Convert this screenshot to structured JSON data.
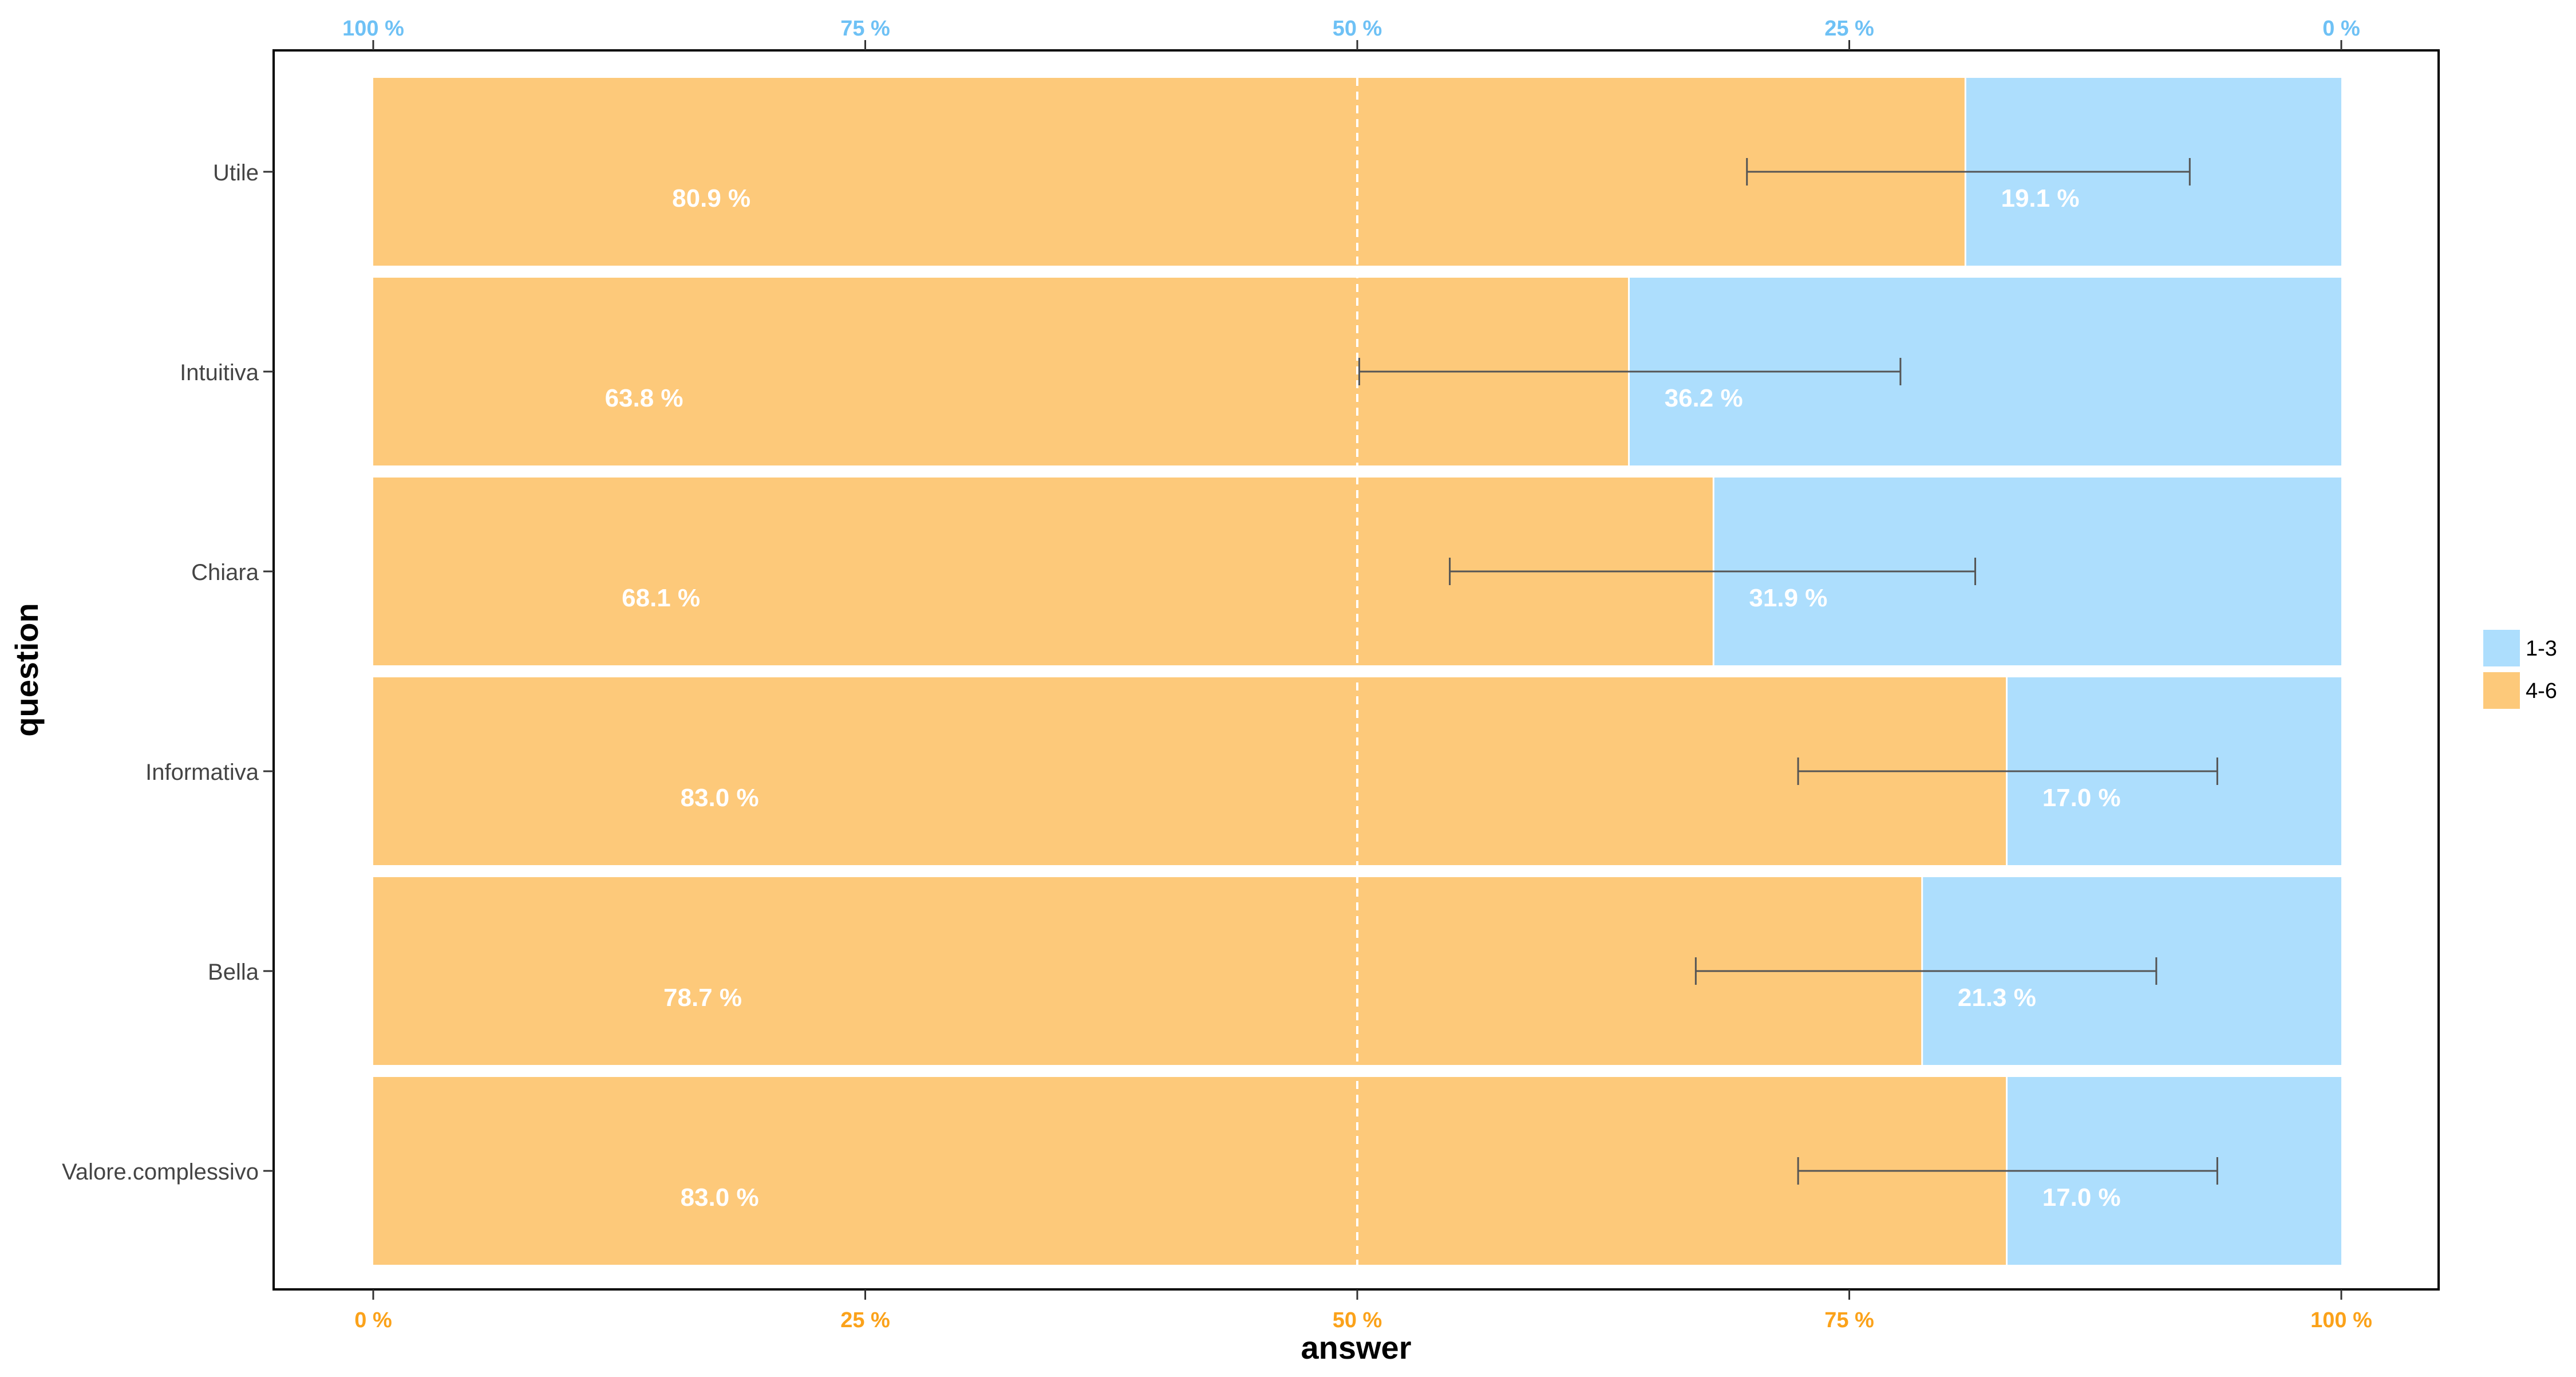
{
  "chart_data": {
    "type": "bar",
    "orientation": "horizontal",
    "stacked": true,
    "xlabel": "answer",
    "ylabel": "question",
    "categories": [
      "Utile",
      "Intuitiva",
      "Chiara",
      "Informativa",
      "Bella",
      "Valore.complessivo"
    ],
    "series": [
      {
        "name": "4-6",
        "color": "#FDC97A",
        "values": [
          80.9,
          63.8,
          68.1,
          83.0,
          78.7,
          83.0
        ],
        "labels": [
          "80.9 %",
          "63.8 %",
          "68.1 %",
          "83.0 %",
          "78.7 %",
          "83.0 %"
        ]
      },
      {
        "name": "1-3",
        "color": "#ADDEFD",
        "values": [
          19.1,
          36.2,
          31.9,
          17.0,
          21.3,
          17.0
        ],
        "labels": [
          "19.1 %",
          "36.2 %",
          "31.9 %",
          "17.0 %",
          "21.3 %",
          "17.0 %"
        ]
      }
    ],
    "error_bars": [
      {
        "category": "Utile",
        "low": 69.8,
        "high": 92.3
      },
      {
        "category": "Intuitiva",
        "low": 50.1,
        "high": 77.6
      },
      {
        "category": "Chiara",
        "low": 54.7,
        "high": 81.4
      },
      {
        "category": "Informativa",
        "low": 72.4,
        "high": 93.7
      },
      {
        "category": "Bella",
        "low": 67.2,
        "high": 90.6
      },
      {
        "category": "Valore.complessivo",
        "low": 72.4,
        "high": 93.7
      }
    ],
    "xlim": [
      0,
      100
    ],
    "bottom_axis": {
      "ticks": [
        0,
        25,
        50,
        75,
        100
      ],
      "tick_labels": [
        "0 %",
        "25 %",
        "50 %",
        "75 %",
        "100 %"
      ],
      "color": "#FBA21A"
    },
    "top_axis": {
      "ticks": [
        0,
        25,
        50,
        75,
        100
      ],
      "tick_labels": [
        "100 %",
        "75 %",
        "50 %",
        "25 %",
        "0 %"
      ],
      "color": "#6EC1F5"
    },
    "reference_line": {
      "x": 50,
      "style": "dashed",
      "color": "#ffffff"
    },
    "legend": {
      "placement": "right",
      "entries": [
        {
          "label": "1-3",
          "color": "#ADDEFD"
        },
        {
          "label": "4-6",
          "color": "#FDC97A"
        }
      ]
    },
    "grid": false
  }
}
